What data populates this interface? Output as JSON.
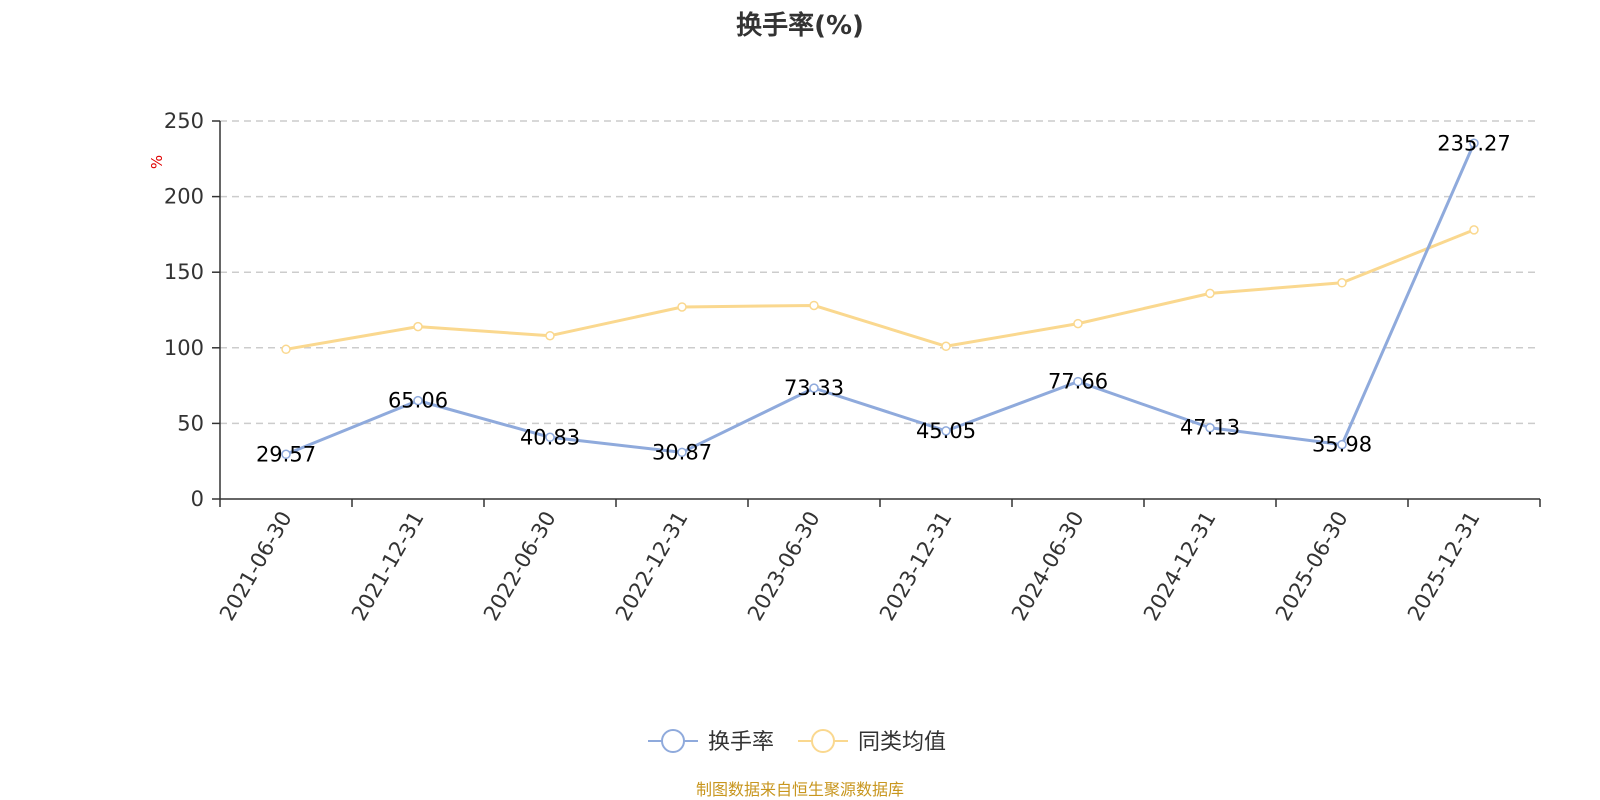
{
  "chart_data": {
    "type": "line",
    "title": "换手率(%)",
    "ylabel": "%",
    "xlabel": "",
    "categories": [
      "2021-06-30",
      "2021-12-31",
      "2022-06-30",
      "2022-12-31",
      "2023-06-30",
      "2023-12-31",
      "2024-06-30",
      "2024-12-31",
      "2025-06-30",
      "2025-12-31"
    ],
    "ylim": [
      0,
      250
    ],
    "yticks": [
      0,
      50,
      100,
      150,
      200,
      250
    ],
    "grid": "horizontal-dashed",
    "legend_position": "bottom-center",
    "series": [
      {
        "name": "换手率",
        "color": "#8faadc",
        "values": [
          29.57,
          65.06,
          40.83,
          30.87,
          73.33,
          45.05,
          77.66,
          47.13,
          35.98,
          235.27
        ],
        "labels": [
          "29.57",
          "65.06",
          "40.83",
          "30.87",
          "73.33",
          "45.05",
          "77.66",
          "47.13",
          "35.98",
          "235.27"
        ]
      },
      {
        "name": "同类均值",
        "color": "#fad88f",
        "values": [
          99,
          114,
          108,
          127,
          128,
          101,
          116,
          136,
          143,
          178
        ]
      }
    ]
  },
  "footer": {
    "source": "制图数据来自恒生聚源数据库"
  }
}
